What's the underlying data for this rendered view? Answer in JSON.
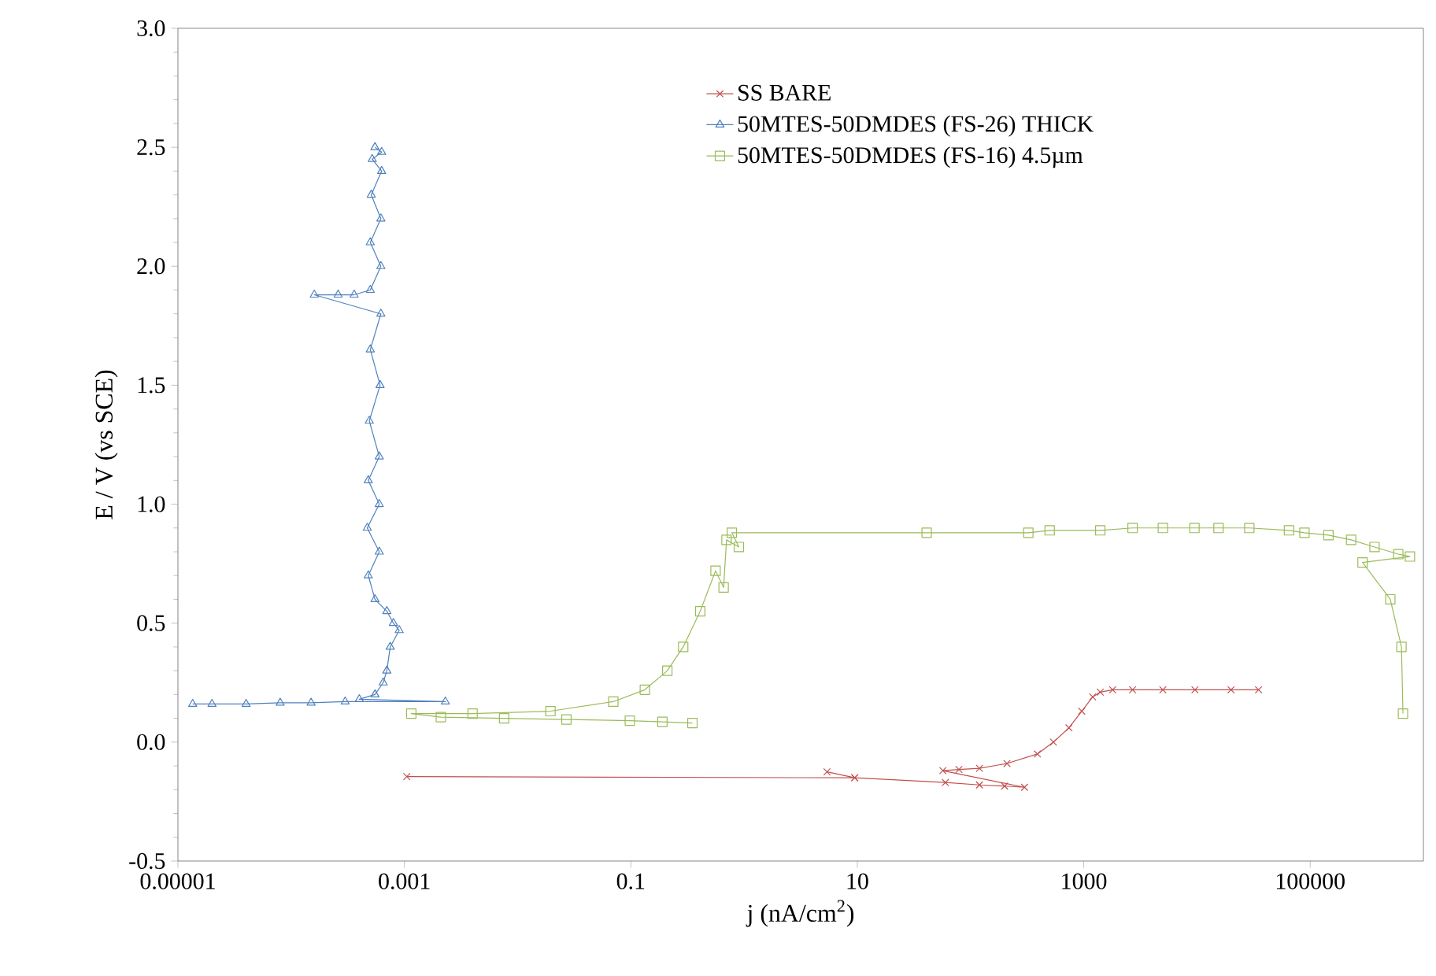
{
  "chart_data": {
    "type": "line",
    "xlabel": "j (nA/cm$^{2}$)",
    "ylabel": "E / V (vs SCE)",
    "log": "x",
    "legend": "top right",
    "grid": false,
    "xlim": [
      1e-05,
      1000000
    ],
    "ylim": [
      -0.5,
      3.0
    ],
    "xticks": [
      {
        "value": 1e-05,
        "label": "0.00001"
      },
      {
        "value": 0.001,
        "label": "0.001"
      },
      {
        "value": 0.1,
        "label": "0.1"
      },
      10,
      1000,
      100000
    ],
    "yticks": [
      {
        "value": -0.5,
        "label": "-0.5"
      },
      {
        "value": 0,
        "label": "0.0"
      },
      {
        "value": 0.5,
        "label": "0.5"
      },
      {
        "value": 1,
        "label": "1.0"
      },
      {
        "value": 1.5,
        "label": "1.5"
      },
      {
        "value": 2,
        "label": "2.0"
      },
      {
        "value": 2.5,
        "label": "2.5"
      },
      {
        "value": 3,
        "label": "3.0"
      }
    ],
    "series": [
      {
        "name": "SS BARE",
        "color": "#c0504d",
        "marker": "cross",
        "x": [
          0.00105,
          9.5,
          5.4,
          9.5,
          60,
          120,
          200,
          300,
          57,
          79,
          120,
          210,
          390,
          540,
          740,
          960,
          1200,
          1400,
          1800,
          2700,
          5000,
          9600,
          20000,
          35000
        ],
        "values": [
          -0.145,
          -0.15,
          -0.125,
          -0.15,
          -0.17,
          -0.18,
          -0.185,
          -0.19,
          -0.12,
          -0.115,
          -0.11,
          -0.09,
          -0.05,
          0.0,
          0.06,
          0.13,
          0.19,
          0.21,
          0.22,
          0.22,
          0.22,
          0.22,
          0.22,
          0.22
        ]
      },
      {
        "name": "50MTES-50DMDES (FS-26) THICK",
        "color": "#4f81bd",
        "marker": "triangle",
        "x": [
          1.35e-05,
          2e-05,
          4e-05,
          8e-05,
          0.00015,
          0.0003,
          0.0023,
          0.0004,
          0.00055,
          0.00065,
          0.0007,
          0.00075,
          0.0009,
          0.0008,
          0.0007,
          0.00055,
          0.00048,
          0.0006,
          0.00047,
          0.0006,
          0.00048,
          0.0006,
          0.00049,
          0.00061,
          0.0005,
          0.00062,
          0.00016,
          0.00026,
          0.00036,
          0.0005,
          0.00062,
          0.0005,
          0.00062,
          0.00051,
          0.00063,
          0.00052,
          0.00063,
          0.00055
        ],
        "values": [
          0.16,
          0.16,
          0.16,
          0.165,
          0.165,
          0.17,
          0.17,
          0.18,
          0.2,
          0.25,
          0.3,
          0.4,
          0.47,
          0.5,
          0.55,
          0.6,
          0.7,
          0.8,
          0.9,
          1.0,
          1.1,
          1.2,
          1.35,
          1.5,
          1.65,
          1.8,
          1.88,
          1.88,
          1.88,
          1.9,
          2.0,
          2.1,
          2.2,
          2.3,
          2.4,
          2.45,
          2.48,
          2.5
        ]
      },
      {
        "name": "50MTES-50DMDES (FS-16) 4.5µm",
        "color": "#9bbb59",
        "marker": "square",
        "x": [
          0.35,
          0.19,
          0.098,
          0.027,
          0.0076,
          0.0021,
          0.00115,
          0.004,
          0.0195,
          0.07,
          0.133,
          0.21,
          0.29,
          0.41,
          0.56,
          0.66,
          0.7,
          0.9,
          0.78,
          41,
          324,
          500,
          1400,
          2700,
          5000,
          9500,
          15500,
          29000,
          65000,
          89000,
          145000,
          230000,
          370000,
          600000,
          760000,
          290000,
          510000,
          640000,
          660000
        ],
        "values": [
          0.08,
          0.085,
          0.09,
          0.095,
          0.1,
          0.105,
          0.12,
          0.12,
          0.13,
          0.17,
          0.22,
          0.3,
          0.4,
          0.55,
          0.72,
          0.65,
          0.85,
          0.82,
          0.88,
          0.88,
          0.88,
          0.89,
          0.89,
          0.9,
          0.9,
          0.9,
          0.9,
          0.9,
          0.89,
          0.88,
          0.87,
          0.85,
          0.82,
          0.79,
          0.78,
          0.755,
          0.6,
          0.4,
          0.12
        ]
      }
    ]
  }
}
